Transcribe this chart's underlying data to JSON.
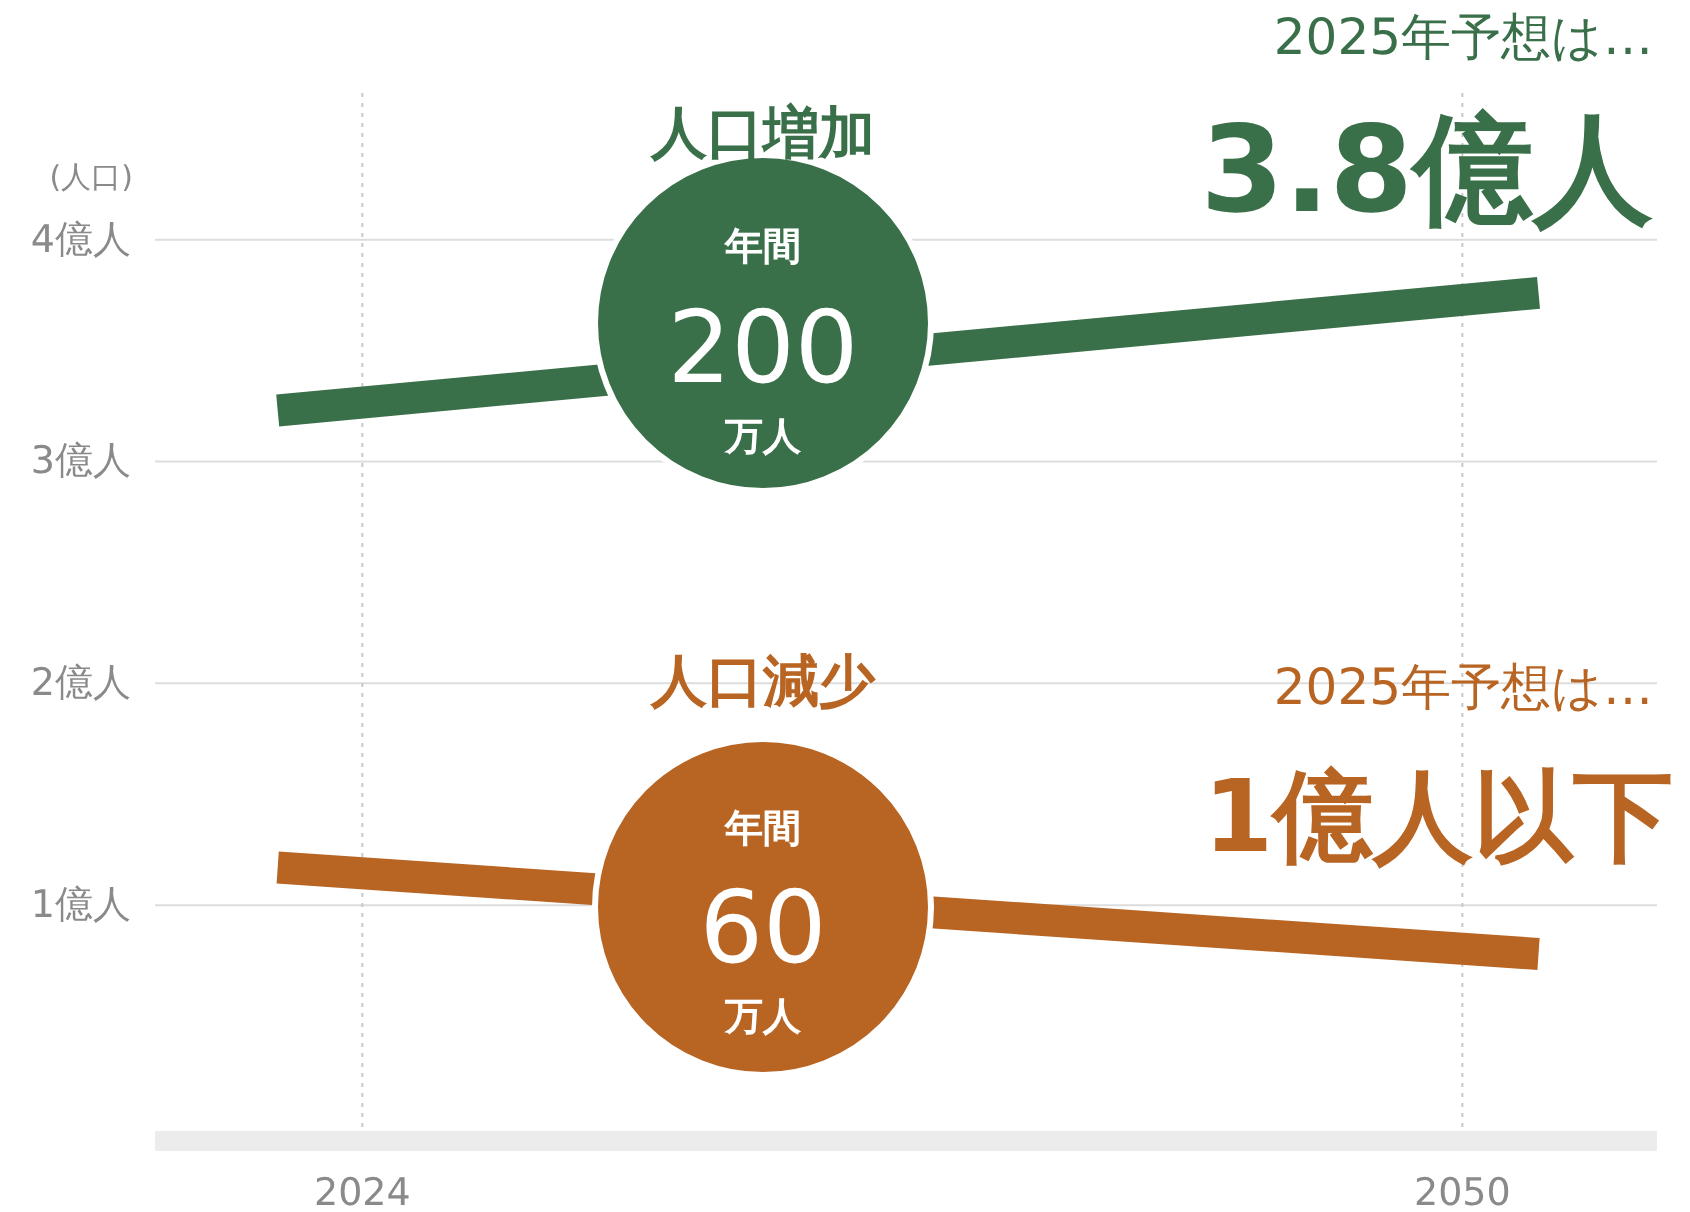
{
  "chart_data": {
    "type": "line",
    "ylabel": "(人口)",
    "xlim": [
      2019.1,
      2054.6
    ],
    "xticks": [
      2024,
      2050
    ],
    "ylim": [
      0,
      4.67
    ],
    "yticks": [
      {
        "value": 1,
        "label": "1億人"
      },
      {
        "value": 2,
        "label": "2億人"
      },
      {
        "value": 3,
        "label": "3億人"
      },
      {
        "value": 4,
        "label": "4億人"
      }
    ],
    "x": [
      2022.0,
      2051.8
    ],
    "series": [
      {
        "color": "#3a7049",
        "values": [
          3.23,
          3.76
        ]
      },
      {
        "color": "#b86422",
        "values": [
          1.17,
          0.78
        ]
      }
    ],
    "grid": true,
    "line_style": "solid",
    "annotations": [
      "人口増加",
      "年間",
      "200",
      "万人",
      "2025年予想は…",
      "3.8億人",
      "人口減少",
      "年間",
      "60",
      "万人",
      "2025年予想は…",
      "1億人以下"
    ]
  }
}
